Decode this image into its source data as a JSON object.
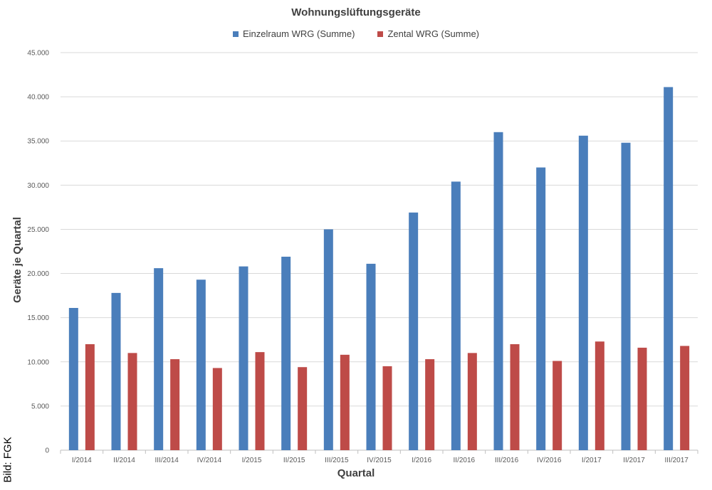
{
  "chart_data": {
    "type": "bar",
    "title": "Wohnungslüftungsgeräte",
    "xlabel": "Quartal",
    "ylabel": "Geräte je Quartal",
    "ylim": [
      0,
      45000
    ],
    "yticks": [
      0,
      5000,
      10000,
      15000,
      20000,
      25000,
      30000,
      35000,
      40000,
      45000
    ],
    "ytick_labels": [
      "0",
      "5.000",
      "10.000",
      "15.000",
      "20.000",
      "25.000",
      "30.000",
      "35.000",
      "40.000",
      "45.000"
    ],
    "grid": true,
    "legend_position": "top",
    "categories": [
      "I/2014",
      "II/2014",
      "III/2014",
      "IV/2014",
      "I/2015",
      "II/2015",
      "III/2015",
      "IV/2015",
      "I/2016",
      "II/2016",
      "III/2016",
      "IV/2016",
      "I/2017",
      "II/2017",
      "III/2017"
    ],
    "series": [
      {
        "name": "Einzelraum WRG (Summe)",
        "color": "#4a7ebb",
        "values": [
          16100,
          17800,
          20600,
          19300,
          20800,
          21900,
          25000,
          21100,
          26900,
          30400,
          36000,
          32000,
          35600,
          34800,
          41100
        ]
      },
      {
        "name": "Zental WRG (Summe)",
        "color": "#be4b48",
        "values": [
          12000,
          11000,
          10300,
          9300,
          11100,
          9400,
          10800,
          9500,
          10300,
          11000,
          12000,
          10100,
          12300,
          11600,
          11800
        ]
      }
    ]
  },
  "credit": "Bild: FGK"
}
